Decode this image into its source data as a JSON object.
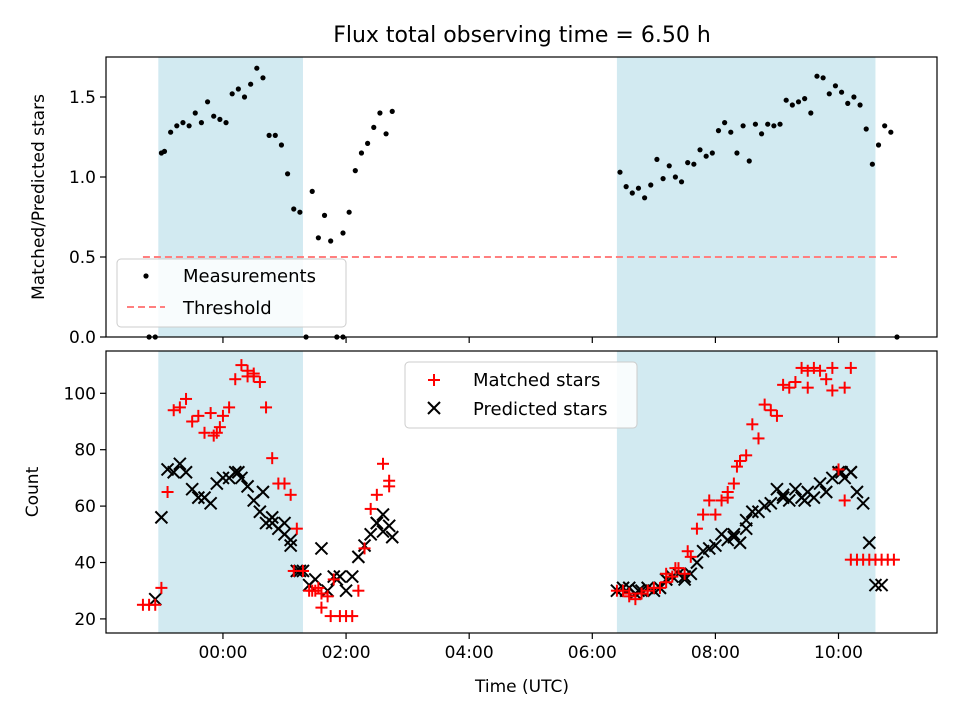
{
  "title": "Flux total observing time = 6.50 h",
  "colors": {
    "shade": "#add8e6",
    "measurement": "#000000",
    "threshold": "#ff7f7f",
    "matched": "#ff0000",
    "predicted": "#000000"
  },
  "chart_data": [
    {
      "type": "scatter",
      "ylabel": "Matched/Predicted stars",
      "xlim": [
        -1.9,
        11.6
      ],
      "ylim": [
        0,
        1.75
      ],
      "yticks": [
        0.0,
        0.5,
        1.0,
        1.5
      ],
      "ytick_labels": [
        "0.0",
        "0.5",
        "1.0",
        "1.5"
      ],
      "shaded_intervals": [
        [
          -1.05,
          1.3
        ],
        [
          6.4,
          10.6
        ]
      ],
      "legend": {
        "placement": "lower-left",
        "entries": [
          "Measurements",
          "Threshold"
        ]
      },
      "threshold": {
        "name": "Threshold",
        "y": 0.5,
        "x_range": [
          -1.3,
          10.95
        ]
      },
      "series": [
        {
          "name": "Measurements",
          "x": [
            -1.2,
            -1.1,
            -1.0,
            -0.95,
            -0.85,
            -0.75,
            -0.65,
            -0.55,
            -0.45,
            -0.35,
            -0.25,
            -0.15,
            -0.05,
            0.05,
            0.15,
            0.25,
            0.35,
            0.45,
            0.55,
            0.65,
            0.75,
            0.85,
            0.95,
            1.05,
            1.15,
            1.25,
            1.35,
            1.45,
            1.55,
            1.65,
            1.75,
            1.85,
            1.95,
            2.05,
            2.15,
            2.25,
            2.35,
            2.45,
            2.55,
            2.65,
            2.75,
            1.95,
            6.45,
            6.55,
            6.65,
            6.75,
            6.85,
            6.95,
            7.05,
            7.15,
            7.25,
            7.35,
            7.45,
            7.55,
            7.65,
            7.75,
            7.85,
            7.95,
            8.05,
            8.15,
            8.25,
            8.35,
            8.45,
            8.55,
            8.65,
            8.75,
            8.85,
            8.95,
            9.05,
            9.15,
            9.25,
            9.35,
            9.45,
            9.55,
            9.65,
            9.75,
            9.85,
            9.95,
            10.05,
            10.15,
            10.25,
            10.35,
            10.45,
            10.55,
            10.65,
            10.75,
            10.85,
            10.95
          ],
          "y": [
            0.0,
            0.0,
            1.15,
            1.16,
            1.28,
            1.32,
            1.34,
            1.32,
            1.4,
            1.34,
            1.47,
            1.38,
            1.36,
            1.34,
            1.52,
            1.55,
            1.5,
            1.58,
            1.68,
            1.62,
            1.26,
            1.26,
            1.2,
            1.02,
            0.8,
            0.78,
            0.0,
            0.91,
            0.62,
            0.76,
            0.6,
            0.0,
            0.65,
            0.78,
            1.04,
            1.15,
            1.21,
            1.31,
            1.4,
            1.27,
            1.41,
            0.0,
            1.03,
            0.94,
            0.9,
            0.93,
            0.87,
            0.95,
            1.11,
            0.99,
            1.07,
            1.0,
            0.97,
            1.09,
            1.08,
            1.17,
            1.13,
            1.15,
            1.29,
            1.34,
            1.28,
            1.15,
            1.32,
            1.1,
            1.33,
            1.27,
            1.33,
            1.32,
            1.33,
            1.48,
            1.45,
            1.47,
            1.49,
            1.4,
            1.63,
            1.62,
            1.52,
            1.57,
            1.53,
            1.46,
            1.5,
            1.45,
            1.3,
            1.08,
            1.2,
            1.32,
            1.28,
            0.0
          ],
          "style": "dot"
        }
      ]
    },
    {
      "type": "scatter",
      "ylabel": "Count",
      "xlabel": "Time (UTC)",
      "xlim": [
        -1.9,
        11.6
      ],
      "ylim": [
        15,
        115
      ],
      "xticks": [
        0,
        2,
        4,
        6,
        8,
        10
      ],
      "xtick_labels": [
        "00:00",
        "02:00",
        "04:00",
        "06:00",
        "08:00",
        "10:00"
      ],
      "yticks": [
        20,
        40,
        60,
        80,
        100
      ],
      "ytick_labels": [
        "20",
        "40",
        "60",
        "80",
        "100"
      ],
      "shaded_intervals": [
        [
          -1.05,
          1.3
        ],
        [
          6.4,
          10.6
        ]
      ],
      "legend": {
        "placement": "upper-center",
        "entries": [
          "Matched stars",
          "Predicted stars"
        ]
      },
      "series": [
        {
          "name": "Matched stars",
          "marker": "plus",
          "x": [
            -1.3,
            -1.2,
            -1.1,
            -1.0,
            -0.9,
            -0.8,
            -0.7,
            -0.6,
            -0.5,
            -0.4,
            -0.3,
            -0.2,
            -0.1,
            0.0,
            0.1,
            0.2,
            0.3,
            0.4,
            0.5,
            0.6,
            0.7,
            0.8,
            0.9,
            1.0,
            1.1,
            1.2,
            1.3,
            1.4,
            1.5,
            1.6,
            1.7,
            1.8,
            1.9,
            2.0,
            2.1,
            2.2,
            2.3,
            2.4,
            2.5,
            2.6,
            2.7,
            6.4,
            6.5,
            6.6,
            6.7,
            6.8,
            6.9,
            7.0,
            7.1,
            7.2,
            7.3,
            7.4,
            7.5,
            7.6,
            7.7,
            7.8,
            7.9,
            8.0,
            8.1,
            8.2,
            8.3,
            8.4,
            8.5,
            8.6,
            8.7,
            8.8,
            8.9,
            9.0,
            9.1,
            9.2,
            9.3,
            9.4,
            9.5,
            9.6,
            9.7,
            9.8,
            9.9,
            10.0,
            10.1,
            10.2,
            10.3,
            10.4,
            10.5,
            10.6,
            10.7,
            10.8,
            10.9
          ],
          "y": [
            25,
            25,
            25,
            31,
            65,
            94,
            95,
            98,
            90,
            92,
            86,
            93,
            86,
            92,
            95,
            105,
            110,
            108,
            106,
            104,
            95,
            77,
            68,
            68,
            64,
            52,
            37,
            30,
            30,
            29,
            28,
            34,
            21,
            21,
            21,
            30,
            45,
            59,
            64,
            75,
            67,
            30,
            30,
            28,
            27,
            29,
            30,
            31,
            31,
            33,
            35,
            38,
            36,
            42,
            52,
            57,
            62,
            57,
            62,
            65,
            68,
            76,
            78,
            89,
            84,
            96,
            94,
            92,
            103,
            102,
            104,
            109,
            108,
            109,
            108,
            105,
            101,
            73,
            62,
            41,
            41,
            41,
            41,
            41,
            41,
            41,
            41
          ],
          "extra_points": [
            [
              0.5,
              107
            ],
            [
              0.4,
              106
            ],
            [
              -0.15,
              85
            ],
            [
              -0.05,
              88
            ],
            [
              1.15,
              37
            ],
            [
              1.3,
              37
            ],
            [
              1.45,
              30
            ],
            [
              1.55,
              31
            ],
            [
              1.6,
              24
            ],
            [
              1.75,
              21
            ],
            [
              2.7,
              69
            ],
            [
              6.6,
              29
            ],
            [
              6.8,
              29
            ],
            [
              7.2,
              36
            ],
            [
              7.35,
              38
            ],
            [
              7.55,
              44
            ],
            [
              8.2,
              63
            ],
            [
              8.35,
              74
            ],
            [
              9.5,
              102
            ],
            [
              9.9,
              109
            ],
            [
              10.1,
              102
            ],
            [
              10.2,
              109
            ]
          ]
        },
        {
          "name": "Predicted stars",
          "marker": "x",
          "x": [
            -1.1,
            -1.0,
            -0.9,
            -0.8,
            -0.7,
            -0.6,
            -0.5,
            -0.4,
            -0.3,
            -0.2,
            -0.1,
            0.0,
            0.1,
            0.2,
            0.3,
            0.4,
            0.5,
            0.6,
            0.7,
            0.8,
            0.9,
            1.0,
            1.1,
            1.2,
            1.3,
            1.4,
            1.5,
            1.6,
            1.7,
            1.8,
            1.9,
            2.0,
            2.1,
            2.2,
            2.3,
            2.4,
            2.5,
            2.6,
            2.7,
            6.4,
            6.5,
            6.6,
            6.7,
            6.8,
            6.9,
            7.0,
            7.1,
            7.2,
            7.3,
            7.4,
            7.5,
            7.6,
            7.7,
            7.8,
            7.9,
            8.0,
            8.1,
            8.2,
            8.3,
            8.4,
            8.5,
            8.6,
            8.7,
            8.8,
            8.9,
            9.0,
            9.1,
            9.2,
            9.3,
            9.4,
            9.5,
            9.6,
            9.7,
            9.8,
            9.9,
            10.0,
            10.1,
            10.2,
            10.3,
            10.4,
            10.5,
            10.6,
            10.7
          ],
          "y": [
            27,
            56,
            73,
            72,
            75,
            72,
            66,
            63,
            63,
            61,
            68,
            70,
            70,
            72,
            70,
            67,
            62,
            58,
            54,
            54,
            52,
            50,
            46,
            37,
            37,
            32,
            34,
            45,
            30,
            35,
            35,
            30,
            35,
            42,
            46,
            50,
            54,
            57,
            53,
            30,
            31,
            31,
            29,
            30,
            31,
            30,
            31,
            34,
            35,
            36,
            34,
            36,
            40,
            44,
            45,
            46,
            50,
            48,
            49,
            47,
            52,
            58,
            58,
            60,
            61,
            66,
            63,
            62,
            66,
            63,
            65,
            63,
            68,
            65,
            70,
            72,
            70,
            72,
            65,
            61,
            47,
            32,
            32
          ],
          "extra_points": [
            [
              0.25,
              72
            ],
            [
              0.65,
              65
            ],
            [
              0.8,
              56
            ],
            [
              1.0,
              54
            ],
            [
              1.1,
              48
            ],
            [
              1.25,
              37
            ],
            [
              1.85,
              34
            ],
            [
              2.5,
              54
            ],
            [
              2.6,
              51
            ],
            [
              2.75,
              49
            ],
            [
              6.55,
              30
            ],
            [
              6.75,
              30
            ],
            [
              7.2,
              34
            ],
            [
              7.5,
              35
            ],
            [
              8.3,
              50
            ],
            [
              8.5,
              55
            ],
            [
              9.1,
              64
            ],
            [
              9.45,
              62
            ],
            [
              10.05,
              72
            ],
            [
              10.2,
              72
            ]
          ]
        }
      ]
    }
  ]
}
